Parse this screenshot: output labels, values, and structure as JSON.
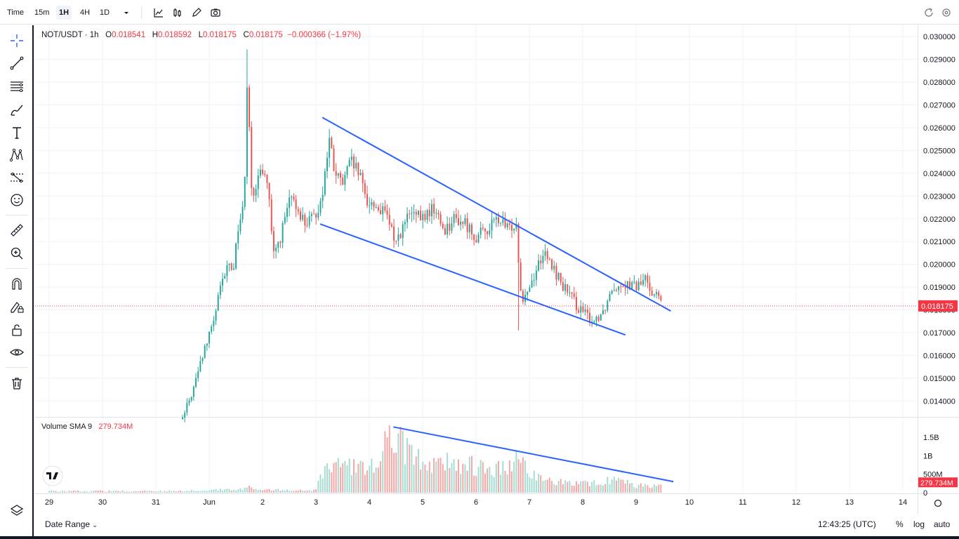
{
  "toolbar": {
    "time_label": "Time",
    "intervals": [
      "15m",
      "1H",
      "4H",
      "1D"
    ],
    "active_interval": "1H",
    "icons": [
      "chevron-down-icon",
      "line-chart-icon",
      "bar-chart-icon",
      "pencil-icon",
      "camera-icon",
      "refresh-icon",
      "settings-icon"
    ]
  },
  "left_tools": [
    "crosshair-icon",
    "trend-line-icon",
    "horizontal-lines-icon",
    "brush-icon",
    "text-icon",
    "pattern-icon",
    "forecast-icon",
    "emoji-icon",
    "ruler-icon",
    "zoom-icon",
    "magnet-icon",
    "draw-lock-icon",
    "lock-icon",
    "eye-icon",
    "trash-icon",
    "layers-icon"
  ],
  "legend": {
    "symbol": "NOT/USDT · 1h",
    "o_label": "O",
    "o": "0.018541",
    "h_label": "H",
    "h": "0.018592",
    "l_label": "L",
    "l": "0.018175",
    "c_label": "C",
    "c": "0.018175",
    "change": "−0.000366 (−1.97%)"
  },
  "volume_legend": {
    "label": "Volume SMA 9",
    "value": "279.734M"
  },
  "price_axis": {
    "ticks": [
      "0.030000",
      "0.029000",
      "0.028000",
      "0.027000",
      "0.026000",
      "0.025000",
      "0.024000",
      "0.023000",
      "0.022000",
      "0.021000",
      "0.020000",
      "0.019000",
      "0.018000",
      "0.017000",
      "0.016000",
      "0.015000",
      "0.014000"
    ],
    "tick_values": [
      0.03,
      0.029,
      0.028,
      0.027,
      0.026,
      0.025,
      0.024,
      0.023,
      0.022,
      0.021,
      0.02,
      0.019,
      0.018,
      0.017,
      0.016,
      0.015,
      0.014
    ],
    "last_price_label": "0.018175",
    "last_price": 0.018175
  },
  "volume_axis": {
    "ticks": [
      "1.5B",
      "1B",
      "500M",
      "0"
    ],
    "tick_values": [
      1500,
      1000,
      500,
      0
    ],
    "sma_label": "279.734M",
    "sma_value": 279.734
  },
  "time_axis": {
    "labels": [
      "29",
      "30",
      "31",
      "Jun",
      "2",
      "3",
      "4",
      "5",
      "6",
      "7",
      "8",
      "9",
      "10",
      "11",
      "12",
      "13",
      "14"
    ]
  },
  "bottom_bar": {
    "date_range": "Date Range",
    "time": "12:43:25 (UTC)",
    "pct": "%",
    "log": "log",
    "auto": "auto"
  },
  "colors": {
    "up": "#26a69a",
    "down": "#ef5350",
    "up_vol": "#a5dcd2",
    "down_vol": "#f5a7a5",
    "trendline": "#2962ff",
    "price_tag": "#f23645"
  },
  "chart_data": {
    "type": "candlestick",
    "interval": "1h",
    "ylim": [
      0.0133,
      0.0305
    ],
    "volume_ylim": [
      0,
      1900
    ],
    "anchors": [
      {
        "d": 1.5,
        "p": 0.0132
      },
      {
        "d": 1.7,
        "p": 0.0145
      },
      {
        "d": 1.9,
        "p": 0.0162
      },
      {
        "d": 2.05,
        "p": 0.0172
      },
      {
        "d": 2.2,
        "p": 0.0188
      },
      {
        "d": 2.35,
        "p": 0.02
      },
      {
        "d": 2.45,
        "p": 0.0198
      },
      {
        "d": 2.55,
        "p": 0.0218
      },
      {
        "d": 2.65,
        "p": 0.0225
      },
      {
        "d": 2.72,
        "p": 0.029
      },
      {
        "d": 2.78,
        "p": 0.0238
      },
      {
        "d": 2.85,
        "p": 0.0225
      },
      {
        "d": 2.95,
        "p": 0.0245
      },
      {
        "d": 3.1,
        "p": 0.0235
      },
      {
        "d": 3.2,
        "p": 0.0203
      },
      {
        "d": 3.35,
        "p": 0.0213
      },
      {
        "d": 3.5,
        "p": 0.0228
      },
      {
        "d": 3.65,
        "p": 0.0225
      },
      {
        "d": 3.8,
        "p": 0.0218
      },
      {
        "d": 3.95,
        "p": 0.022
      },
      {
        "d": 4.1,
        "p": 0.0228
      },
      {
        "d": 4.25,
        "p": 0.0255
      },
      {
        "d": 4.35,
        "p": 0.024
      },
      {
        "d": 4.5,
        "p": 0.0235
      },
      {
        "d": 4.65,
        "p": 0.0245
      },
      {
        "d": 4.8,
        "p": 0.024
      },
      {
        "d": 4.95,
        "p": 0.0228
      },
      {
        "d": 5.15,
        "p": 0.0225
      },
      {
        "d": 5.3,
        "p": 0.0222
      },
      {
        "d": 5.5,
        "p": 0.021
      },
      {
        "d": 5.75,
        "p": 0.0222
      },
      {
        "d": 6.0,
        "p": 0.022
      },
      {
        "d": 6.2,
        "p": 0.0225
      },
      {
        "d": 6.4,
        "p": 0.0215
      },
      {
        "d": 6.6,
        "p": 0.022
      },
      {
        "d": 6.8,
        "p": 0.0218
      },
      {
        "d": 7.0,
        "p": 0.0212
      },
      {
        "d": 7.2,
        "p": 0.0215
      },
      {
        "d": 7.4,
        "p": 0.022
      },
      {
        "d": 7.6,
        "p": 0.0215
      },
      {
        "d": 7.75,
        "p": 0.0219
      },
      {
        "d": 7.85,
        "p": 0.0185
      },
      {
        "d": 8.0,
        "p": 0.019
      },
      {
        "d": 8.25,
        "p": 0.0205
      },
      {
        "d": 8.45,
        "p": 0.0198
      },
      {
        "d": 8.7,
        "p": 0.0188
      },
      {
        "d": 8.95,
        "p": 0.018
      },
      {
        "d": 9.2,
        "p": 0.0175
      },
      {
        "d": 9.4,
        "p": 0.018
      },
      {
        "d": 9.55,
        "p": 0.019
      },
      {
        "d": 9.75,
        "p": 0.0192
      },
      {
        "d": 10.0,
        "p": 0.019
      },
      {
        "d": 10.2,
        "p": 0.0194
      },
      {
        "d": 10.3,
        "p": 0.0188
      },
      {
        "d": 10.45,
        "p": 0.0185
      },
      {
        "d": 10.5,
        "p": 0.0182
      }
    ],
    "candle_spacing_days": 0.0417,
    "first_candle_day": 1.5,
    "last_candle_day": 10.5,
    "pre_data_start_day": -1.0,
    "day_label_values": [
      -1,
      0,
      1,
      2,
      3,
      4,
      5,
      6,
      7,
      8,
      9,
      10,
      11,
      12,
      13,
      14,
      15
    ],
    "spike_high": {
      "d": 2.72,
      "p": 0.02945
    },
    "drop_low": {
      "d": 7.8,
      "p": 0.0171
    },
    "trendlines_price": [
      {
        "x1": 4.12,
        "y1": 0.02645,
        "x2": 10.65,
        "y2": 0.01795
      },
      {
        "x1": 4.08,
        "y1": 0.02177,
        "x2": 9.8,
        "y2": 0.0169
      }
    ],
    "trendline_volume": {
      "x1": 5.45,
      "y1": 1780,
      "x2": 10.7,
      "y2": 300
    },
    "volume_profile": [
      {
        "d": -1.0,
        "v": 40
      },
      {
        "d": 1.5,
        "v": 50
      },
      {
        "d": 2.6,
        "v": 120
      },
      {
        "d": 2.75,
        "v": 180
      },
      {
        "d": 3.0,
        "v": 90
      },
      {
        "d": 4.0,
        "v": 70
      },
      {
        "d": 4.1,
        "v": 650
      },
      {
        "d": 4.5,
        "v": 800
      },
      {
        "d": 5.0,
        "v": 700
      },
      {
        "d": 5.4,
        "v": 1650
      },
      {
        "d": 5.6,
        "v": 1500
      },
      {
        "d": 6.0,
        "v": 850
      },
      {
        "d": 6.5,
        "v": 900
      },
      {
        "d": 7.0,
        "v": 800
      },
      {
        "d": 7.5,
        "v": 700
      },
      {
        "d": 7.8,
        "v": 1000
      },
      {
        "d": 8.2,
        "v": 400
      },
      {
        "d": 8.8,
        "v": 250
      },
      {
        "d": 9.4,
        "v": 300
      },
      {
        "d": 9.6,
        "v": 450
      },
      {
        "d": 10.0,
        "v": 200
      },
      {
        "d": 10.5,
        "v": 250
      }
    ]
  }
}
